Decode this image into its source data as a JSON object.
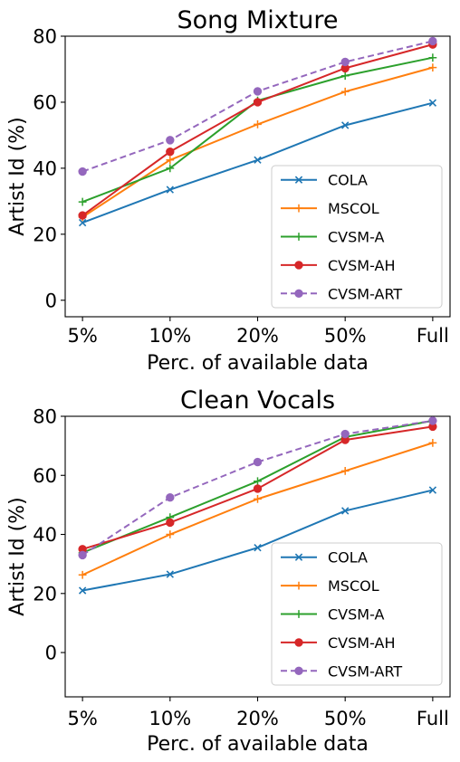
{
  "chart_data": [
    {
      "type": "line",
      "title": "Song Mixture",
      "xlabel": "Perc. of available data",
      "ylabel": "Artist Id (%)",
      "categories": [
        "5%",
        "10%",
        "20%",
        "50%",
        "Full"
      ],
      "ylim": [
        -5,
        80
      ],
      "yticks": [
        0,
        20,
        40,
        60,
        80
      ],
      "grid": false,
      "legend_position": "lower-right",
      "series": [
        {
          "name": "COLA",
          "values": [
            23.5,
            33.5,
            42.5,
            53,
            59.8
          ],
          "color": "#1f77b4",
          "marker": "x",
          "dashed": false
        },
        {
          "name": "MSCOL",
          "values": [
            25.2,
            42.5,
            53.3,
            63.2,
            70.5
          ],
          "color": "#ff7f0e",
          "marker": "+",
          "dashed": false
        },
        {
          "name": "CVSM-A",
          "values": [
            29.8,
            40,
            60.5,
            68,
            73.5
          ],
          "color": "#2ca02c",
          "marker": "+",
          "dashed": false
        },
        {
          "name": "CVSM-AH",
          "values": [
            25.7,
            45,
            60,
            70.3,
            77.5
          ],
          "color": "#d62728",
          "marker": "o",
          "dashed": false
        },
        {
          "name": "CVSM-ART",
          "values": [
            39,
            48.5,
            63.3,
            72.2,
            78.5
          ],
          "color": "#9467bd",
          "marker": "o",
          "dashed": true
        }
      ]
    },
    {
      "type": "line",
      "title": "Clean Vocals",
      "xlabel": "Perc. of available data",
      "ylabel": "Artist Id (%)",
      "categories": [
        "5%",
        "10%",
        "20%",
        "50%",
        "Full"
      ],
      "ylim": [
        -15,
        80
      ],
      "yticks": [
        0,
        20,
        40,
        60,
        80
      ],
      "grid": false,
      "legend_position": "lower-right",
      "series": [
        {
          "name": "COLA",
          "values": [
            21,
            26.5,
            35.5,
            48,
            55
          ],
          "color": "#1f77b4",
          "marker": "x",
          "dashed": false
        },
        {
          "name": "MSCOL",
          "values": [
            26.3,
            40,
            52,
            61.5,
            71
          ],
          "color": "#ff7f0e",
          "marker": "+",
          "dashed": false
        },
        {
          "name": "CVSM-A",
          "values": [
            33.8,
            45.8,
            58,
            73,
            78.5
          ],
          "color": "#2ca02c",
          "marker": "+",
          "dashed": false
        },
        {
          "name": "CVSM-AH",
          "values": [
            35,
            44,
            55.5,
            72,
            76.5
          ],
          "color": "#d62728",
          "marker": "o",
          "dashed": false
        },
        {
          "name": "CVSM-ART",
          "values": [
            33,
            52.5,
            64.5,
            74,
            78.5
          ],
          "color": "#9467bd",
          "marker": "o",
          "dashed": true
        }
      ]
    }
  ]
}
